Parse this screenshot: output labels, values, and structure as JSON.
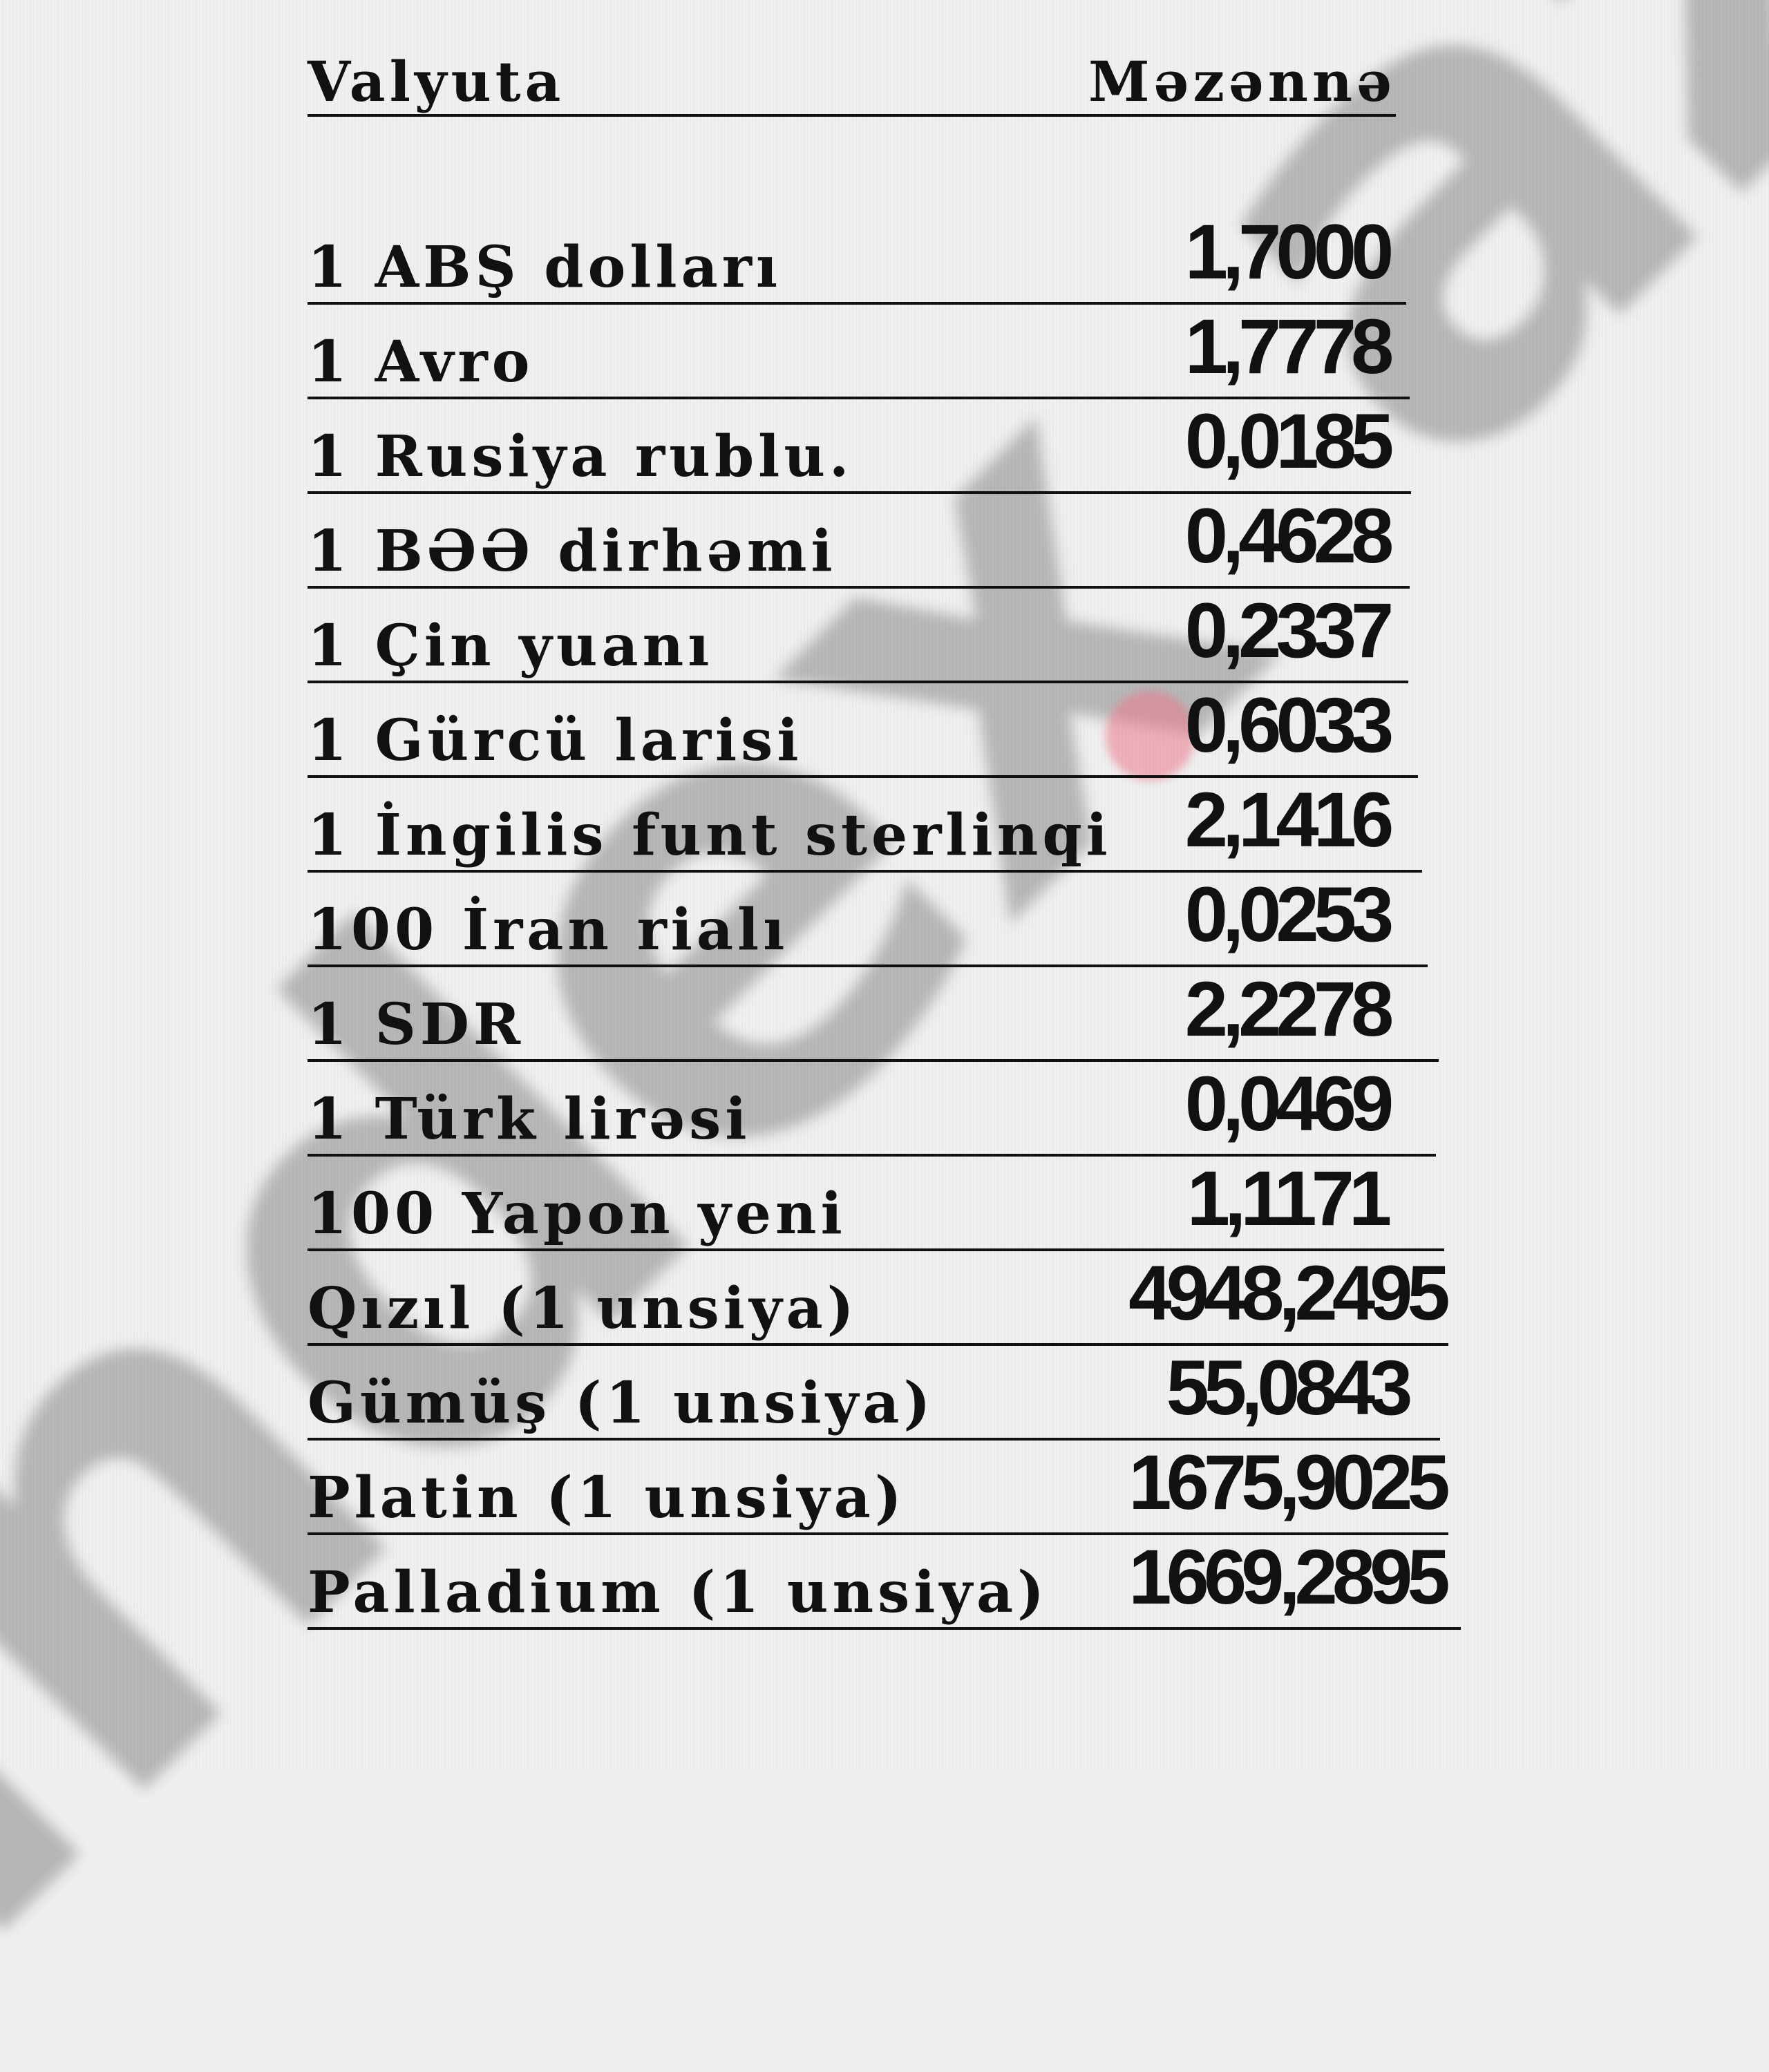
{
  "header": {
    "currency": "Valyuta",
    "rate": "Məzənnə"
  },
  "watermark": "index.az",
  "rows": [
    {
      "label": "1 ABŞ dolları",
      "value": "1,7000"
    },
    {
      "label": "1 Avro",
      "value": "1,7778"
    },
    {
      "label": "1 Rusiya rublu.",
      "value": "0,0185"
    },
    {
      "label": "1 BƏƏ dirhəmi",
      "value": "0,4628"
    },
    {
      "label": "1 Çin yuanı",
      "value": "0,2337"
    },
    {
      "label": "1 Gürcü larisi",
      "value": "0,6033"
    },
    {
      "label": "1 İngilis funt sterlinqi",
      "value": "2,1416"
    },
    {
      "label": "100 İran rialı",
      "value": "0,0253"
    },
    {
      "label": "1 SDR",
      "value": "2,2278"
    },
    {
      "label": "1 Türk lirəsi",
      "value": "0,0469"
    },
    {
      "label": "100 Yapon yeni",
      "value": "1,1171"
    },
    {
      "label": "Qızıl (1 unsiya)",
      "value": "4948,2495"
    },
    {
      "label": "Gümüş (1 unsiya)",
      "value": "55,0843"
    },
    {
      "label": "Platin (1 unsiya)",
      "value": "1675,9025"
    },
    {
      "label": "Palladium (1 unsiya)",
      "value": "1669,2895"
    }
  ]
}
